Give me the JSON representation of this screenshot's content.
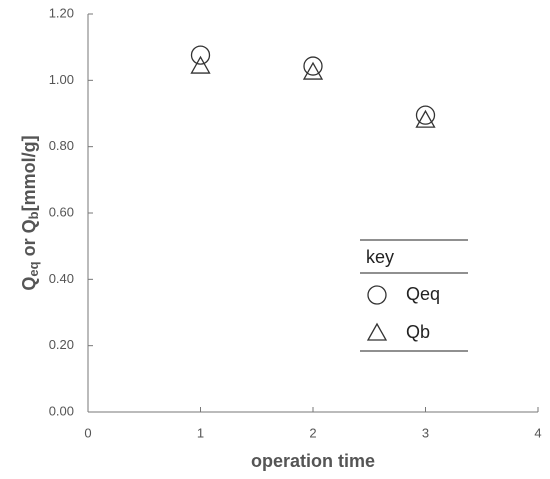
{
  "chart_data": {
    "type": "scatter",
    "x_label": "operation time",
    "y_label": [
      "Q",
      "eq",
      " or Q",
      "b",
      "[mmol/g]"
    ],
    "legend_title": "key",
    "series": [
      {
        "name": "Qeq",
        "marker": "circle",
        "color": "#333333",
        "x": [
          1,
          2,
          3
        ],
        "values": [
          1.076,
          1.043,
          0.895
        ]
      },
      {
        "name": "Qb",
        "marker": "triangle",
        "color": "#333333",
        "x": [
          1,
          2,
          3
        ],
        "values": [
          1.043,
          1.025,
          0.88
        ]
      }
    ],
    "xlim": [
      0,
      4
    ],
    "xticks": [
      0,
      1,
      2,
      3,
      4
    ],
    "ylim": [
      0,
      1.2
    ],
    "yticks": [
      {
        "value": 0,
        "label": "0.00"
      },
      {
        "value": 0.2,
        "label": "0.20"
      },
      {
        "value": 0.4,
        "label": "0.40"
      },
      {
        "value": 0.6,
        "label": "0.60"
      },
      {
        "value": 0.8,
        "label": "0.80"
      },
      {
        "value": 1.0,
        "label": "1.00"
      },
      {
        "value": 1.2,
        "label": "1.20"
      }
    ]
  }
}
